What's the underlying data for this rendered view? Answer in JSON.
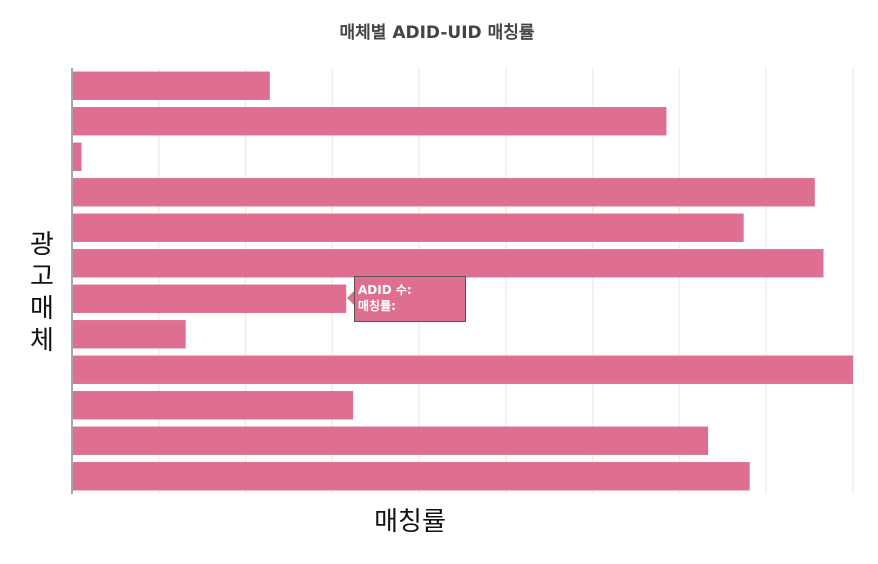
{
  "chart_data": {
    "type": "bar",
    "orientation": "horizontal",
    "title": "매체별 ADID-UID 매칭률",
    "xlabel": "매칭률",
    "ylabel": "광고매체",
    "grid": true,
    "xlim": [
      0,
      0.9
    ],
    "values": [
      0.228,
      0.685,
      0.011,
      0.856,
      0.774,
      0.866,
      0.316,
      0.131,
      0.9,
      0.324,
      0.733,
      0.781
    ],
    "bar_color": "#de6f91",
    "tooltip": {
      "line1": "ADID 수:",
      "line2": "매칭률:"
    }
  }
}
